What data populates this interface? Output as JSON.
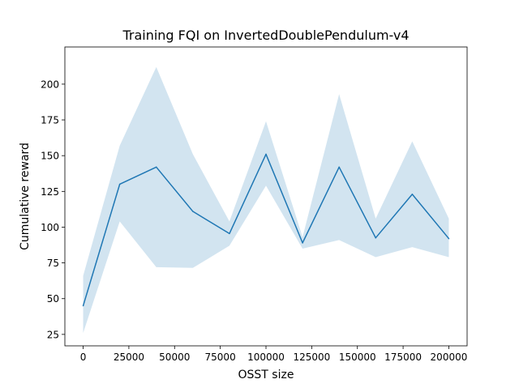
{
  "chart_data": {
    "type": "line",
    "title": "Training FQI on InvertedDoublePendulum-v4",
    "xlabel": "OSST size",
    "ylabel": "Cumulative reward",
    "xlim": [
      -10000,
      210000
    ],
    "ylim": [
      17,
      226
    ],
    "xticks": [
      0,
      25000,
      50000,
      75000,
      100000,
      125000,
      150000,
      175000,
      200000
    ],
    "xtick_labels": [
      "0",
      "25000",
      "50000",
      "75000",
      "100000",
      "125000",
      "150000",
      "175000",
      "200000"
    ],
    "yticks": [
      25,
      50,
      75,
      100,
      125,
      150,
      175,
      200
    ],
    "ytick_labels": [
      "25",
      "50",
      "75",
      "100",
      "125",
      "150",
      "175",
      "200"
    ],
    "grid": false,
    "series": [
      {
        "x": [
          0,
          20000,
          40000,
          60000,
          80000,
          100000,
          120000,
          140000,
          160000,
          180000,
          200000
        ],
        "values": [
          45,
          130,
          142,
          111,
          95.5,
          151,
          89,
          142,
          92.5,
          123,
          92
        ],
        "lower": [
          26,
          104,
          72,
          71.5,
          87,
          129,
          85,
          91,
          79,
          86,
          79
        ],
        "upper": [
          66,
          157,
          212,
          151,
          104,
          174,
          93,
          193,
          106,
          160,
          106
        ],
        "color": "#1f77b4",
        "band_color": "#1f77b4"
      }
    ]
  }
}
